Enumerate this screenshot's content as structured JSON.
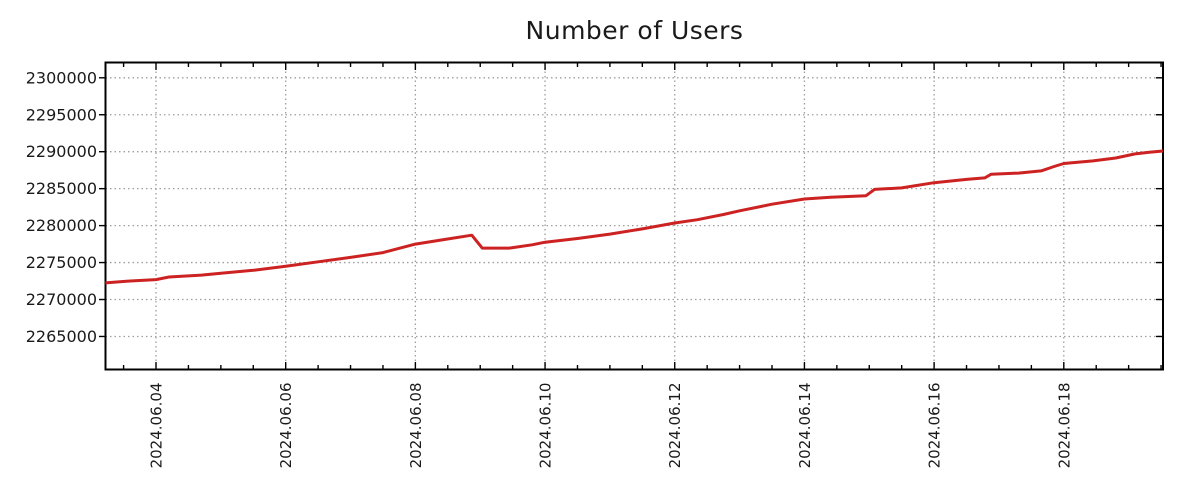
{
  "chart_data": {
    "type": "line",
    "title": "Number of Users",
    "xlabel": "",
    "ylabel": "",
    "legend": "none",
    "grid": "dotted",
    "x_epoch_note": "t = days since 2024-06-03 00:00",
    "x_range": [
      0.221,
      16.53
    ],
    "y_range": [
      2260530,
      2302070
    ],
    "x_minor_step": 0.5,
    "x_ticks": [
      {
        "t": 1,
        "label": "2024.06.04"
      },
      {
        "t": 3,
        "label": "2024.06.06"
      },
      {
        "t": 5,
        "label": "2024.06.08"
      },
      {
        "t": 7,
        "label": "2024.06.10"
      },
      {
        "t": 9,
        "label": "2024.06.12"
      },
      {
        "t": 11,
        "label": "2024.06.14"
      },
      {
        "t": 13,
        "label": "2024.06.16"
      },
      {
        "t": 15,
        "label": "2024.06.18"
      }
    ],
    "y_ticks": [
      2265000,
      2270000,
      2275000,
      2280000,
      2285000,
      2290000,
      2295000,
      2300000
    ],
    "colors": {
      "line": "#cc2222",
      "grid": "#9e9e9e",
      "axis": "#000000",
      "text": "#1a1a1a",
      "background": "#ffffff"
    },
    "series": [
      {
        "name": "Number of Users",
        "color": "#cc2222",
        "points": [
          [
            0.22,
            2272250
          ],
          [
            0.6,
            2272500
          ],
          [
            1.0,
            2272700
          ],
          [
            1.2,
            2273050
          ],
          [
            1.7,
            2273300
          ],
          [
            2.0,
            2273550
          ],
          [
            2.5,
            2273950
          ],
          [
            3.0,
            2274500
          ],
          [
            3.5,
            2275100
          ],
          [
            4.0,
            2275700
          ],
          [
            4.5,
            2276350
          ],
          [
            5.0,
            2277500
          ],
          [
            5.4,
            2278050
          ],
          [
            5.87,
            2278700
          ],
          [
            6.03,
            2276950
          ],
          [
            6.45,
            2276950
          ],
          [
            6.8,
            2277400
          ],
          [
            7.0,
            2277750
          ],
          [
            7.5,
            2278250
          ],
          [
            8.0,
            2278850
          ],
          [
            8.5,
            2279550
          ],
          [
            9.0,
            2280350
          ],
          [
            9.35,
            2280800
          ],
          [
            9.75,
            2281500
          ],
          [
            10.0,
            2282000
          ],
          [
            10.5,
            2282900
          ],
          [
            11.0,
            2283600
          ],
          [
            11.4,
            2283850
          ],
          [
            11.95,
            2284050
          ],
          [
            12.08,
            2284900
          ],
          [
            12.5,
            2285100
          ],
          [
            13.0,
            2285800
          ],
          [
            13.5,
            2286250
          ],
          [
            13.78,
            2286450
          ],
          [
            13.88,
            2286950
          ],
          [
            14.3,
            2287100
          ],
          [
            14.65,
            2287400
          ],
          [
            14.85,
            2288000
          ],
          [
            15.0,
            2288400
          ],
          [
            15.45,
            2288750
          ],
          [
            15.8,
            2289150
          ],
          [
            16.1,
            2289700
          ],
          [
            16.3,
            2289900
          ],
          [
            16.53,
            2290100
          ]
        ]
      }
    ]
  }
}
